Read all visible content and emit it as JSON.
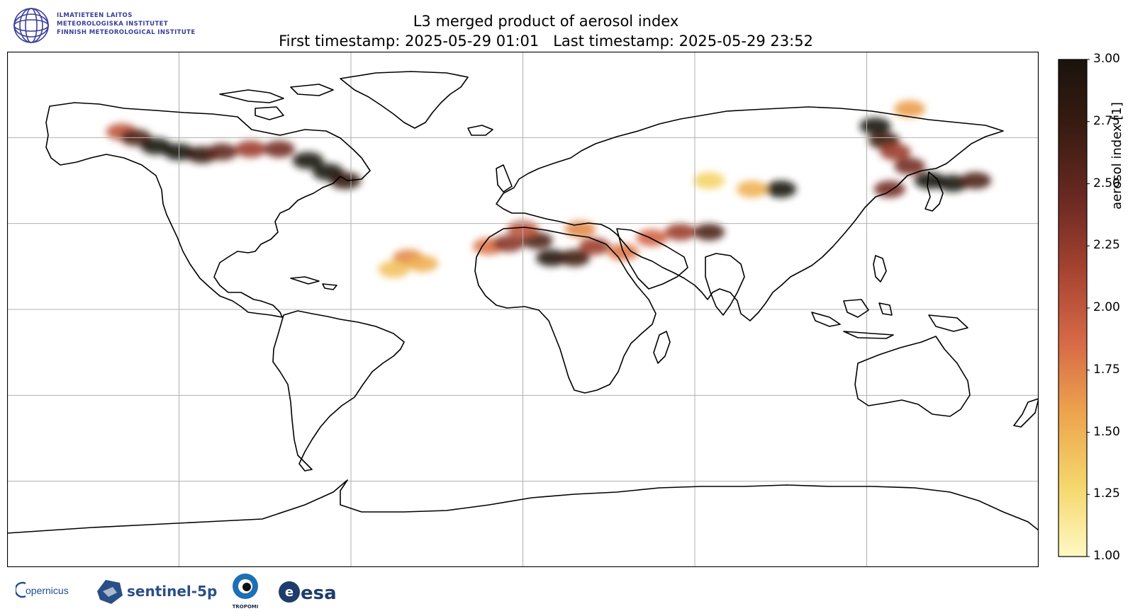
{
  "header": {
    "institute_lines": [
      "ILMATIETEEN LAITOS",
      "METEOROLOGISKA INSTITUTET",
      "FINNISH METEOROLOGICAL INSTITUTE"
    ],
    "title_line1": "L3 merged product of aerosol index",
    "title_line2": "First timestamp: 2025-05-29 01:01   Last timestamp: 2025-05-29 23:52"
  },
  "colorbar": {
    "label": "aerosol index [1]",
    "ticks": [
      "3.00",
      "2.75",
      "2.50",
      "2.25",
      "2.00",
      "1.75",
      "1.50",
      "1.25",
      "1.00"
    ],
    "range": [
      1.0,
      3.0
    ],
    "colors": [
      "#fef9c3",
      "#f5d66b",
      "#eda54e",
      "#d76a47",
      "#a84432",
      "#6d2a22",
      "#3a1c12",
      "#1a140c"
    ]
  },
  "map": {
    "projection": "plate-carree",
    "lon_range": [
      -180,
      180
    ],
    "lat_range": [
      -90,
      90
    ],
    "gridlines": {
      "lon": [
        -120,
        -60,
        0,
        60,
        120
      ],
      "lat": [
        -60,
        -30,
        0,
        30,
        60
      ]
    },
    "plumes": [
      {
        "region": "North America smoke",
        "points": [
          [
            -140,
            62,
            2.0
          ],
          [
            -135,
            60,
            2.6
          ],
          [
            -128,
            57,
            3.0
          ],
          [
            -120,
            55,
            3.0
          ],
          [
            -112,
            54,
            2.8
          ],
          [
            -105,
            55,
            2.5
          ],
          [
            -95,
            56,
            2.2
          ],
          [
            -85,
            56,
            2.4
          ],
          [
            -75,
            52,
            3.0
          ],
          [
            -68,
            48,
            3.0
          ],
          [
            -62,
            45,
            2.8
          ]
        ]
      },
      {
        "region": "Siberia smoke",
        "points": [
          [
            123,
            64,
            3.0
          ],
          [
            126,
            59,
            2.7
          ],
          [
            130,
            55,
            2.2
          ],
          [
            135,
            50,
            2.4
          ],
          [
            142,
            45,
            3.0
          ],
          [
            150,
            44,
            3.0
          ],
          [
            158,
            45,
            2.6
          ],
          [
            128,
            42,
            2.4
          ],
          [
            135,
            70,
            1.6
          ]
        ]
      },
      {
        "region": "Central Asia",
        "points": [
          [
            90,
            42,
            3.0
          ],
          [
            80,
            42,
            1.5
          ],
          [
            65,
            45,
            1.3
          ]
        ]
      },
      {
        "region": "Saharan dust",
        "points": [
          [
            -12,
            22,
            1.8
          ],
          [
            -5,
            23,
            2.3
          ],
          [
            5,
            24,
            2.6
          ],
          [
            10,
            18,
            2.9
          ],
          [
            18,
            18,
            2.7
          ],
          [
            25,
            22,
            2.2
          ],
          [
            35,
            20,
            1.8
          ],
          [
            45,
            25,
            1.9
          ],
          [
            55,
            27,
            2.2
          ],
          [
            65,
            27,
            2.6
          ],
          [
            0,
            28,
            2.0
          ],
          [
            20,
            28,
            1.7
          ]
        ]
      },
      {
        "region": "Atlantic dust",
        "points": [
          [
            -40,
            18,
            1.7
          ],
          [
            -35,
            16,
            1.5
          ],
          [
            -45,
            14,
            1.4
          ]
        ]
      }
    ]
  },
  "footer": {
    "logos": [
      "opernicus",
      "sentinel-5p",
      "TROPOMI",
      "esa"
    ]
  }
}
